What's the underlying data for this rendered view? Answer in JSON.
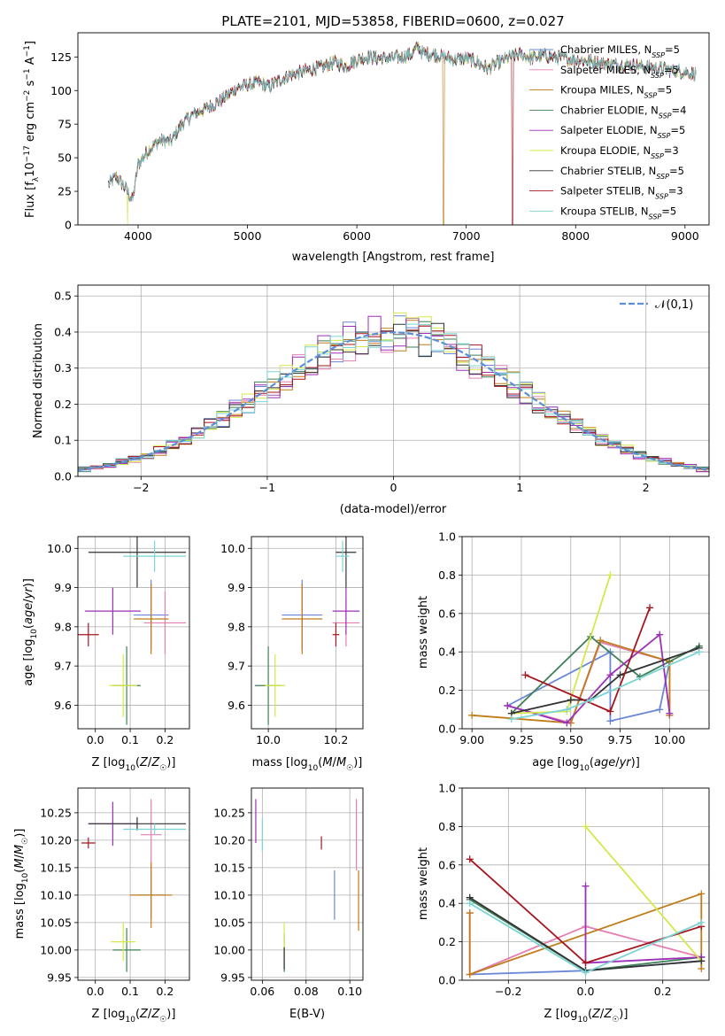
{
  "title": "PLATE=2101, MJD=53858, FIBERID=0600, z=0.027",
  "models": [
    {
      "imf": "Chabrier",
      "lib": "MILES",
      "n": "5",
      "color": "#6a87d6"
    },
    {
      "imf": "Salpeter",
      "lib": "MILES",
      "n": "5",
      "color": "#e37fb2"
    },
    {
      "imf": "Kroupa",
      "lib": "MILES",
      "n": "5",
      "color": "#c07c1a"
    },
    {
      "imf": "Chabrier",
      "lib": "ELODIE",
      "n": "4",
      "color": "#3f7f57"
    },
    {
      "imf": "Salpeter",
      "lib": "ELODIE",
      "n": "5",
      "color": "#9c2fb8"
    },
    {
      "imf": "Kroupa",
      "lib": "ELODIE",
      "n": "3",
      "color": "#d5e84a"
    },
    {
      "imf": "Chabrier",
      "lib": "STELIB",
      "n": "5",
      "color": "#333333"
    },
    {
      "imf": "Salpeter",
      "lib": "STELIB",
      "n": "3",
      "color": "#a5161f"
    },
    {
      "imf": "Kroupa",
      "lib": "STELIB",
      "n": "5",
      "color": "#7cd4d4"
    }
  ],
  "chart_data": [
    {
      "id": "spectrum",
      "type": "line",
      "title": "PLATE=2101, MJD=53858, FIBERID=0600, z=0.027",
      "xlabel": "wavelength [Angstrom, rest frame]",
      "ylabel": "Flux [f_λ10^-17 erg cm^-2 s^-1 A^-1]",
      "xlim": [
        3450,
        9220
      ],
      "ylim": [
        0,
        143
      ],
      "xticks": [
        4000,
        5000,
        6000,
        7000,
        8000,
        9000
      ],
      "yticks": [
        0,
        25,
        50,
        75,
        100,
        125
      ],
      "continuum": [
        [
          3730,
          30
        ],
        [
          3800,
          36
        ],
        [
          3880,
          28
        ],
        [
          3950,
          18
        ],
        [
          4000,
          45
        ],
        [
          4100,
          56
        ],
        [
          4200,
          63
        ],
        [
          4300,
          62
        ],
        [
          4400,
          75
        ],
        [
          4500,
          82
        ],
        [
          4600,
          86
        ],
        [
          4700,
          90
        ],
        [
          4800,
          95
        ],
        [
          4900,
          102
        ],
        [
          5000,
          104
        ],
        [
          5100,
          106
        ],
        [
          5200,
          103
        ],
        [
          5300,
          108
        ],
        [
          5400,
          112
        ],
        [
          5500,
          114
        ],
        [
          5600,
          116
        ],
        [
          5700,
          118
        ],
        [
          5800,
          121
        ],
        [
          5900,
          118
        ],
        [
          6000,
          123
        ],
        [
          6100,
          125
        ],
        [
          6200,
          124
        ],
        [
          6300,
          124
        ],
        [
          6400,
          125
        ],
        [
          6500,
          127
        ],
        [
          6563,
          133
        ],
        [
          6600,
          128
        ],
        [
          6700,
          127
        ],
        [
          6800,
          125
        ],
        [
          6900,
          123
        ],
        [
          7000,
          124
        ],
        [
          7100,
          121
        ],
        [
          7200,
          116
        ],
        [
          7300,
          121
        ],
        [
          7400,
          125
        ],
        [
          7500,
          127
        ],
        [
          7600,
          124
        ],
        [
          7700,
          126
        ],
        [
          7800,
          125
        ],
        [
          7900,
          124
        ],
        [
          8000,
          123
        ],
        [
          8100,
          122
        ],
        [
          8200,
          121
        ],
        [
          8300,
          120
        ],
        [
          8400,
          119
        ],
        [
          8500,
          119
        ],
        [
          8600,
          118
        ],
        [
          8700,
          117
        ],
        [
          8800,
          116
        ],
        [
          8900,
          115
        ],
        [
          9000,
          114
        ],
        [
          9100,
          112
        ]
      ],
      "notes": "nine overlapping model/data spectra; some model curves drop to 0 near 3900, 6790 and 7420 Å"
    },
    {
      "id": "residuals",
      "type": "step",
      "xlabel": "(data-model)/error",
      "ylabel": "Normed distribution",
      "xlim": [
        -2.5,
        2.5
      ],
      "ylim": [
        0,
        0.53
      ],
      "xticks": [
        -2,
        -1,
        0,
        1,
        2
      ],
      "yticks": [
        0.0,
        0.1,
        0.2,
        0.3,
        0.4,
        0.5
      ],
      "legend": "𝒩(0,1)",
      "legend_position": "top-right",
      "gaussian": {
        "mu": 0,
        "sigma": 1
      },
      "bin_width": 0.1
    },
    {
      "id": "age_vs_Z",
      "type": "errorbar",
      "xlabel": "Z [log10(Z/Z☉)]",
      "ylabel": "age  [log10(age/yr)]",
      "xlim": [
        -0.05,
        0.27
      ],
      "ylim": [
        9.54,
        10.03
      ],
      "xticks": [
        0.0,
        0.1,
        0.2
      ],
      "yticks": [
        9.6,
        9.7,
        9.8,
        9.9,
        10.0
      ],
      "points": [
        {
          "x": 0.16,
          "y": 9.83,
          "xerr": 0.05,
          "yerr": 0.09
        },
        {
          "x": 0.2,
          "y": 9.81,
          "xerr": 0.06,
          "yerr": 0.08
        },
        {
          "x": 0.16,
          "y": 9.82,
          "xerr": 0.05,
          "yerr": 0.09
        },
        {
          "x": 0.09,
          "y": 9.65,
          "xerr": 0.04,
          "yerr": 0.1
        },
        {
          "x": 0.05,
          "y": 9.84,
          "xerr": 0.08,
          "yerr": 0.06
        },
        {
          "x": 0.08,
          "y": 9.65,
          "xerr": 0.04,
          "yerr": 0.08
        },
        {
          "x": 0.12,
          "y": 9.99,
          "xerr": 0.14,
          "yerr": 0.09
        },
        {
          "x": -0.02,
          "y": 9.78,
          "xerr": 0.03,
          "yerr": 0.03
        },
        {
          "x": 0.17,
          "y": 9.98,
          "xerr": 0.09,
          "yerr": 0.04
        }
      ]
    },
    {
      "id": "age_vs_mass",
      "type": "errorbar",
      "xlabel": "mass [log10(M/M☉)]",
      "ylabel": "",
      "xlim": [
        9.95,
        10.28
      ],
      "ylim": [
        9.54,
        10.03
      ],
      "xticks": [
        10.0,
        10.2
      ],
      "yticks": [
        9.6,
        9.7,
        9.8,
        9.9,
        10.0
      ],
      "points": [
        {
          "x": 10.1,
          "y": 9.83,
          "xerr": 0.06,
          "yerr": 0.09
        },
        {
          "x": 10.23,
          "y": 9.81,
          "xerr": 0.04,
          "yerr": 0.06
        },
        {
          "x": 10.1,
          "y": 9.82,
          "xerr": 0.06,
          "yerr": 0.09
        },
        {
          "x": 10.0,
          "y": 9.65,
          "xerr": 0.04,
          "yerr": 0.1
        },
        {
          "x": 10.23,
          "y": 9.84,
          "xerr": 0.04,
          "yerr": 0.06
        },
        {
          "x": 10.02,
          "y": 9.65,
          "xerr": 0.03,
          "yerr": 0.08
        },
        {
          "x": 10.23,
          "y": 9.99,
          "xerr": 0.03,
          "yerr": 0.09
        },
        {
          "x": 10.2,
          "y": 9.78,
          "xerr": 0.01,
          "yerr": 0.03
        },
        {
          "x": 10.22,
          "y": 9.98,
          "xerr": 0.02,
          "yerr": 0.04
        }
      ]
    },
    {
      "id": "weight_vs_age",
      "type": "line",
      "xlabel": "age  [log10(age/yr)]",
      "ylabel": "mass weight",
      "xlim": [
        8.95,
        10.2
      ],
      "ylim": [
        0,
        1
      ],
      "xticks": [
        9.0,
        9.25,
        9.5,
        9.75,
        10.0
      ],
      "yticks": [
        0.0,
        0.2,
        0.4,
        0.6,
        0.8,
        1.0
      ],
      "series": [
        {
          "x": [
            9.18,
            9.7,
            9.7,
            9.95,
            10.0
          ],
          "y": [
            0.12,
            0.4,
            0.04,
            0.1,
            0.35
          ]
        },
        {
          "x": [
            9.18,
            9.5,
            9.65,
            10.0,
            10.0
          ],
          "y": [
            0.12,
            0.03,
            0.45,
            0.35,
            0.07
          ]
        },
        {
          "x": [
            9.0,
            9.5,
            9.65,
            10.0,
            10.0
          ],
          "y": [
            0.07,
            0.03,
            0.46,
            0.35,
            0.07
          ]
        },
        {
          "x": [
            9.2,
            9.6,
            9.85,
            10.15
          ],
          "y": [
            0.08,
            0.48,
            0.27,
            0.43
          ]
        },
        {
          "x": [
            9.18,
            9.48,
            9.7,
            9.95,
            10.0
          ],
          "y": [
            0.12,
            0.03,
            0.28,
            0.49,
            0.08
          ]
        },
        {
          "x": [
            9.2,
            9.48,
            9.7
          ],
          "y": [
            0.08,
            0.09,
            0.8
          ]
        },
        {
          "x": [
            9.2,
            9.5,
            9.6,
            9.75,
            10.15
          ],
          "y": [
            0.08,
            0.15,
            0.15,
            0.28,
            0.42
          ]
        },
        {
          "x": [
            9.27,
            9.7,
            9.9
          ],
          "y": [
            0.28,
            0.09,
            0.63
          ]
        },
        {
          "x": [
            9.2,
            9.48,
            9.6,
            10.15
          ],
          "y": [
            0.05,
            0.1,
            0.15,
            0.4
          ]
        }
      ]
    },
    {
      "id": "mass_vs_Z",
      "type": "errorbar",
      "xlabel": "Z [log10(Z/Z☉)]",
      "ylabel": "mass [log10(M/M☉)]",
      "xlim": [
        -0.05,
        0.27
      ],
      "ylim": [
        9.945,
        10.295
      ],
      "xticks": [
        0.0,
        0.1,
        0.2
      ],
      "yticks": [
        9.95,
        10.0,
        10.05,
        10.1,
        10.15,
        10.2,
        10.25
      ],
      "points": [
        {
          "x": 0.16,
          "y": 10.1,
          "xerr": 0.04,
          "yerr": 0.045
        },
        {
          "x": 0.16,
          "y": 10.21,
          "xerr": 0.03,
          "yerr": 0.065
        },
        {
          "x": 0.16,
          "y": 10.1,
          "xerr": 0.06,
          "yerr": 0.06
        },
        {
          "x": 0.09,
          "y": 10.0,
          "xerr": 0.04,
          "yerr": 0.04
        },
        {
          "x": 0.05,
          "y": 10.23,
          "xerr": 0.07,
          "yerr": 0.04
        },
        {
          "x": 0.08,
          "y": 10.015,
          "xerr": 0.035,
          "yerr": 0.035
        },
        {
          "x": 0.12,
          "y": 10.23,
          "xerr": 0.14,
          "yerr": 0.012
        },
        {
          "x": -0.02,
          "y": 10.195,
          "xerr": 0.02,
          "yerr": 0.01
        },
        {
          "x": 0.17,
          "y": 10.22,
          "xerr": 0.09,
          "yerr": 0.01
        }
      ]
    },
    {
      "id": "mass_vs_EBV",
      "type": "errorbar",
      "xlabel": "E(B-V)",
      "ylabel": "",
      "xlim": [
        0.055,
        0.106
      ],
      "ylim": [
        9.945,
        10.295
      ],
      "xticks": [
        0.06,
        0.08,
        0.1
      ],
      "yticks": [
        9.95,
        10.0,
        10.05,
        10.1,
        10.15,
        10.2,
        10.25
      ],
      "points": [
        {
          "x": 0.093,
          "y": 10.1,
          "xerr": 0,
          "yerr": 0.045
        },
        {
          "x": 0.103,
          "y": 10.21,
          "xerr": 0,
          "yerr": 0.065
        },
        {
          "x": 0.104,
          "y": 10.09,
          "xerr": 0,
          "yerr": 0.055
        },
        {
          "x": 0.07,
          "y": 9.995,
          "xerr": 0,
          "yerr": 0.035
        },
        {
          "x": 0.057,
          "y": 10.235,
          "xerr": 0,
          "yerr": 0.04
        },
        {
          "x": 0.07,
          "y": 10.02,
          "xerr": 0,
          "yerr": 0.03
        },
        {
          "x": 0.07,
          "y": 9.985,
          "xerr": 0,
          "yerr": 0.02
        },
        {
          "x": 0.087,
          "y": 10.195,
          "xerr": 0,
          "yerr": 0.012
        },
        {
          "x": 0.06,
          "y": 10.21,
          "xerr": 0,
          "yerr": 0.03
        }
      ]
    },
    {
      "id": "weight_vs_Z",
      "type": "line",
      "xlabel": "Z [log10(Z/Z☉)]",
      "ylabel": "mass weight",
      "xlim": [
        -0.32,
        0.32
      ],
      "ylim": [
        0,
        1
      ],
      "xticks": [
        -0.2,
        0.0,
        0.2
      ],
      "yticks": [
        0.0,
        0.2,
        0.4,
        0.6,
        0.8,
        1.0
      ],
      "series": [
        {
          "x": [
            -0.3,
            0.0,
            0.3
          ],
          "y": [
            0.03,
            0.05,
            0.1
          ]
        },
        {
          "x": [
            -0.3,
            -0.3,
            0.0,
            0.3
          ],
          "y": [
            0.35,
            0.03,
            0.28,
            0.12
          ]
        },
        {
          "x": [
            -0.3,
            -0.3,
            0.3,
            0.3
          ],
          "y": [
            0.35,
            0.03,
            0.45,
            0.06
          ]
        },
        {
          "x": [
            -0.3,
            0.0,
            0.3
          ],
          "y": [
            0.42,
            0.05,
            0.12
          ]
        },
        {
          "x": [
            0.0,
            0.0,
            0.3
          ],
          "y": [
            0.49,
            0.09,
            0.12
          ]
        },
        {
          "x": [
            0.0,
            0.3
          ],
          "y": [
            0.8,
            0.1
          ]
        },
        {
          "x": [
            -0.3,
            0.0,
            0.3
          ],
          "y": [
            0.43,
            0.05,
            0.1
          ]
        },
        {
          "x": [
            -0.3,
            0.0,
            0.3
          ],
          "y": [
            0.63,
            0.09,
            0.28
          ]
        },
        {
          "x": [
            -0.3,
            0.0,
            0.3
          ],
          "y": [
            0.4,
            0.04,
            0.3
          ]
        }
      ]
    }
  ]
}
